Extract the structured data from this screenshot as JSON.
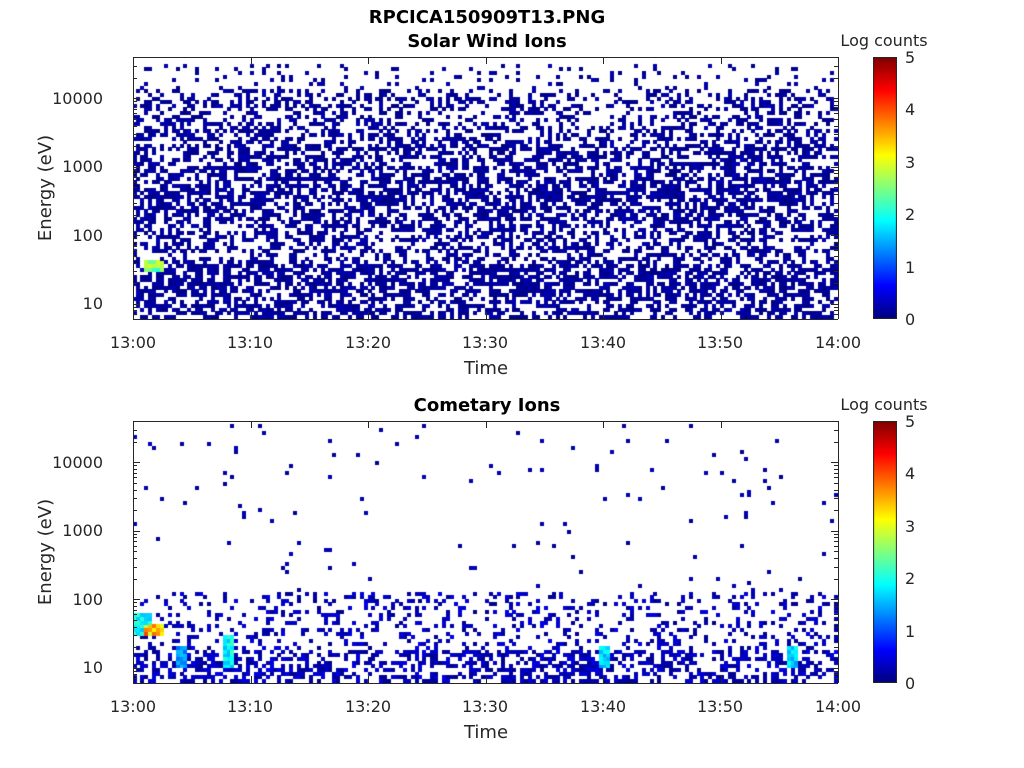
{
  "figure": {
    "title": "RPCICA150909T13.PNG"
  },
  "colors": {
    "jet_stops": [
      "#00007f",
      "#0000ff",
      "#007fff",
      "#00ffff",
      "#7fff7f",
      "#ffff00",
      "#ff7f00",
      "#ff0000",
      "#7f0000"
    ],
    "axis": "#262626"
  },
  "chart_data": [
    {
      "type": "heatmap",
      "title": "Solar Wind Ions",
      "xlabel": "Time",
      "ylabel": "Energy (eV)",
      "x_ticks": [
        "13:00",
        "13:10",
        "13:20",
        "13:30",
        "13:40",
        "13:50",
        "14:00"
      ],
      "x_range": [
        "13:00",
        "14:00"
      ],
      "y_ticks": [
        "10",
        "100",
        "1000",
        "10000"
      ],
      "y_scale": "log",
      "y_range": [
        6,
        40000
      ],
      "colorbar": {
        "label": "Log counts",
        "ticks": [
          "0",
          "1",
          "2",
          "3",
          "4",
          "5"
        ],
        "range": [
          0,
          5
        ],
        "colormap": "jet"
      },
      "features": [
        {
          "time": "13:00-14:00",
          "energy_eV": [
            6,
            30000
          ],
          "log_counts": 0.1,
          "description_level": "sparse low counts throughout"
        },
        {
          "time": "13:01-13:02",
          "energy_eV": [
            28,
            45
          ],
          "log_counts": 2.7
        }
      ]
    },
    {
      "type": "heatmap",
      "title": "Cometary Ions",
      "xlabel": "Time",
      "ylabel": "Energy (eV)",
      "x_ticks": [
        "13:00",
        "13:10",
        "13:20",
        "13:30",
        "13:40",
        "13:50",
        "14:00"
      ],
      "x_range": [
        "13:00",
        "14:00"
      ],
      "y_ticks": [
        "10",
        "100",
        "1000",
        "10000"
      ],
      "y_scale": "log",
      "y_range": [
        6,
        40000
      ],
      "colorbar": {
        "label": "Log counts",
        "ticks": [
          "0",
          "1",
          "2",
          "3",
          "4",
          "5"
        ],
        "range": [
          0,
          5
        ],
        "colormap": "jet"
      },
      "features": [
        {
          "time": "13:00-14:00",
          "energy_eV": [
            6,
            130
          ],
          "log_counts": 0.3
        },
        {
          "time": "13:01-13:02",
          "energy_eV": [
            30,
            45
          ],
          "log_counts": 3.7
        },
        {
          "time": "13:00-13:01",
          "energy_eV": [
            30,
            60
          ],
          "log_counts": 2.0
        },
        {
          "time": "13:04",
          "energy_eV": [
            10,
            20
          ],
          "log_counts": 1.5
        },
        {
          "time": "13:08",
          "energy_eV": [
            10,
            30
          ],
          "log_counts": 2.0
        },
        {
          "time": "13:40",
          "energy_eV": [
            10,
            20
          ],
          "log_counts": 1.8
        },
        {
          "time": "13:56",
          "energy_eV": [
            10,
            20
          ],
          "log_counts": 1.8
        }
      ]
    }
  ]
}
